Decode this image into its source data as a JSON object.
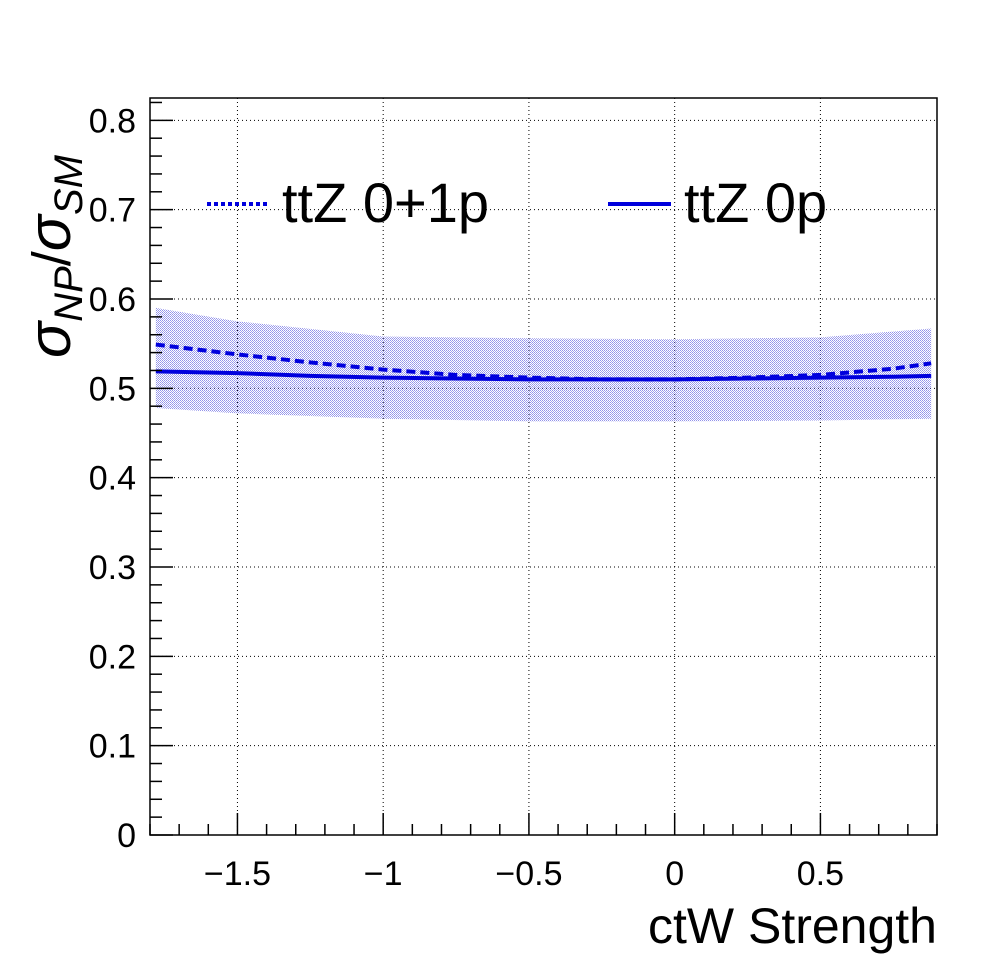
{
  "chart_data": {
    "type": "line",
    "xlabel": "ctW Strength",
    "ylabel": {
      "symbol": "σ",
      "numerator_sub": "NP",
      "slash": "/",
      "denominator_sub": "SM"
    },
    "xlim": [
      -1.8,
      0.9
    ],
    "ylim": [
      0,
      0.825
    ],
    "xticks": [
      -1.5,
      -1,
      -0.5,
      0,
      0.5
    ],
    "xtick_labels": [
      "−1.5",
      "−1",
      "−0.5",
      "0",
      "0.5"
    ],
    "yticks": [
      0,
      0.1,
      0.2,
      0.3,
      0.4,
      0.5,
      0.6,
      0.7,
      0.8
    ],
    "ytick_labels": [
      "0",
      "0.1",
      "0.2",
      "0.3",
      "0.4",
      "0.5",
      "0.6",
      "0.7",
      "0.8"
    ],
    "grid": true,
    "legend_position": "top",
    "band": {
      "color": "#8080e6",
      "x": [
        -1.78,
        -1.5,
        -1.0,
        -0.5,
        0.0,
        0.5,
        0.88
      ],
      "upper": [
        0.59,
        0.575,
        0.558,
        0.556,
        0.555,
        0.557,
        0.567
      ],
      "lower": [
        0.478,
        0.472,
        0.466,
        0.463,
        0.463,
        0.464,
        0.466
      ]
    },
    "series": [
      {
        "name": "ttZ 0+1p",
        "style": "dashed",
        "color": "#0000dd",
        "x": [
          -1.78,
          -1.5,
          -1.25,
          -1.0,
          -0.75,
          -0.5,
          -0.25,
          0.0,
          0.25,
          0.5,
          0.75,
          0.88
        ],
        "y": [
          0.549,
          0.538,
          0.529,
          0.521,
          0.515,
          0.512,
          0.51,
          0.51,
          0.512,
          0.515,
          0.522,
          0.528
        ]
      },
      {
        "name": "ttZ 0p",
        "style": "solid",
        "color": "#0000dd",
        "x": [
          -1.78,
          -1.5,
          -1.25,
          -1.0,
          -0.75,
          -0.5,
          -0.25,
          0.0,
          0.25,
          0.5,
          0.75,
          0.88
        ],
        "y": [
          0.519,
          0.517,
          0.514,
          0.512,
          0.511,
          0.51,
          0.51,
          0.51,
          0.511,
          0.512,
          0.513,
          0.514
        ]
      }
    ]
  }
}
